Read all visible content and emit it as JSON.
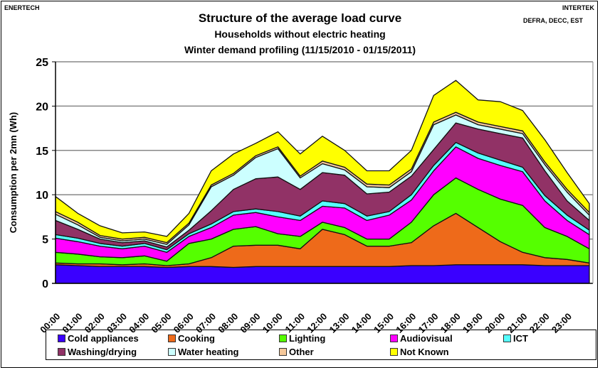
{
  "header": {
    "left_label": "ENERTECH",
    "right_label": "INTERTEK",
    "right_sublabel": "DEFRA, DECC, EST"
  },
  "chart_data": {
    "type": "area",
    "stacked": true,
    "title": "Structure of the average load curve",
    "subtitle": "Households without electric heating",
    "subtitle2": "Winter demand profiling (11/15/2010 - 01/15/2011)",
    "xlabel": "",
    "ylabel": "Consumption per 2mn (Wh)",
    "ylim": [
      0,
      25
    ],
    "yticks": [
      "0",
      "5",
      "10",
      "15",
      "20",
      "25"
    ],
    "xticks": [
      "00:00",
      "01:00",
      "02:00",
      "03:00",
      "04:00",
      "05:00",
      "06:00",
      "07:00",
      "08:00",
      "09:00",
      "10:00",
      "11:00",
      "12:00",
      "13:00",
      "14:00",
      "15:00",
      "16:00",
      "17:00",
      "18:00",
      "19:00",
      "20:00",
      "21:00",
      "22:00",
      "23:00"
    ],
    "x_hours": [
      0,
      1,
      2,
      3,
      4,
      5,
      6,
      7,
      8,
      9,
      10,
      11,
      12,
      13,
      14,
      15,
      16,
      17,
      18,
      19,
      20,
      21,
      22,
      23,
      24
    ],
    "grid": true,
    "legend_position": "bottom",
    "series": [
      {
        "name": "Cold appliances",
        "color": "#3a00ff",
        "values": [
          2.1,
          2.0,
          1.9,
          1.9,
          1.9,
          1.8,
          1.9,
          1.9,
          1.8,
          1.9,
          1.9,
          1.9,
          1.9,
          1.9,
          1.9,
          1.9,
          2.0,
          2.0,
          2.1,
          2.1,
          2.1,
          2.1,
          2.0,
          2.0,
          2.0
        ]
      },
      {
        "name": "Cooking",
        "color": "#ee6a1a",
        "values": [
          0.2,
          0.2,
          0.3,
          0.2,
          0.3,
          0.2,
          0.3,
          1.0,
          2.4,
          2.4,
          2.4,
          2.0,
          4.2,
          3.6,
          2.3,
          2.3,
          2.6,
          4.5,
          5.8,
          4.2,
          2.6,
          1.4,
          0.9,
          0.7,
          0.3
        ]
      },
      {
        "name": "Lighting",
        "color": "#55ff00",
        "values": [
          1.2,
          1.1,
          0.8,
          0.8,
          0.9,
          0.5,
          2.3,
          2.1,
          1.9,
          2.1,
          1.3,
          1.4,
          0.8,
          0.8,
          0.8,
          0.8,
          2.3,
          3.5,
          4.0,
          4.3,
          4.8,
          5.3,
          3.4,
          2.6,
          1.6
        ]
      },
      {
        "name": "Audiovisual",
        "color": "#ff00ff",
        "values": [
          1.6,
          1.4,
          1.2,
          1.0,
          1.1,
          1.0,
          0.8,
          1.3,
          1.6,
          1.6,
          1.9,
          1.8,
          1.8,
          2.2,
          2.1,
          2.7,
          2.5,
          2.7,
          3.5,
          3.5,
          3.8,
          3.8,
          3.0,
          1.8,
          1.6
        ]
      },
      {
        "name": "ICT",
        "color": "#55ffff",
        "values": [
          0.4,
          0.4,
          0.3,
          0.3,
          0.3,
          0.3,
          0.3,
          0.4,
          0.4,
          0.4,
          0.6,
          0.5,
          0.6,
          0.5,
          0.5,
          0.4,
          0.6,
          0.6,
          0.5,
          0.6,
          0.6,
          0.5,
          0.6,
          0.6,
          0.5
        ]
      },
      {
        "name": "Washing/drying",
        "color": "#913266",
        "values": [
          1.6,
          1.0,
          0.5,
          0.4,
          0.3,
          0.3,
          0.4,
          1.5,
          2.5,
          3.4,
          3.9,
          3.0,
          3.2,
          3.2,
          2.5,
          2.2,
          2.1,
          1.8,
          2.2,
          2.7,
          3.0,
          3.3,
          2.8,
          1.6,
          1.1
        ]
      },
      {
        "name": "Water heating",
        "color": "#ccffff",
        "values": [
          0.7,
          0.5,
          0.2,
          0.2,
          0.2,
          0.3,
          0.6,
          2.7,
          1.6,
          2.4,
          3.2,
          1.3,
          1.0,
          0.6,
          0.8,
          0.5,
          0.5,
          2.8,
          0.9,
          0.5,
          0.5,
          0.5,
          0.7,
          1.0,
          0.6
        ]
      },
      {
        "name": "Other",
        "color": "#f5c89a",
        "values": [
          0.3,
          0.3,
          0.2,
          0.2,
          0.2,
          0.2,
          0.2,
          0.2,
          0.2,
          0.2,
          0.2,
          0.2,
          0.3,
          0.3,
          0.3,
          0.3,
          0.3,
          0.3,
          0.3,
          0.3,
          0.3,
          0.3,
          0.3,
          0.3,
          0.3
        ]
      },
      {
        "name": "Not Known",
        "color": "#ffff00",
        "values": [
          1.7,
          1.0,
          1.1,
          0.7,
          0.6,
          0.7,
          1.1,
          1.6,
          2.2,
          1.4,
          1.7,
          2.5,
          2.8,
          1.9,
          1.5,
          1.6,
          2.1,
          3.0,
          3.6,
          2.5,
          2.8,
          2.3,
          2.5,
          1.9,
          1.0
        ]
      }
    ]
  }
}
